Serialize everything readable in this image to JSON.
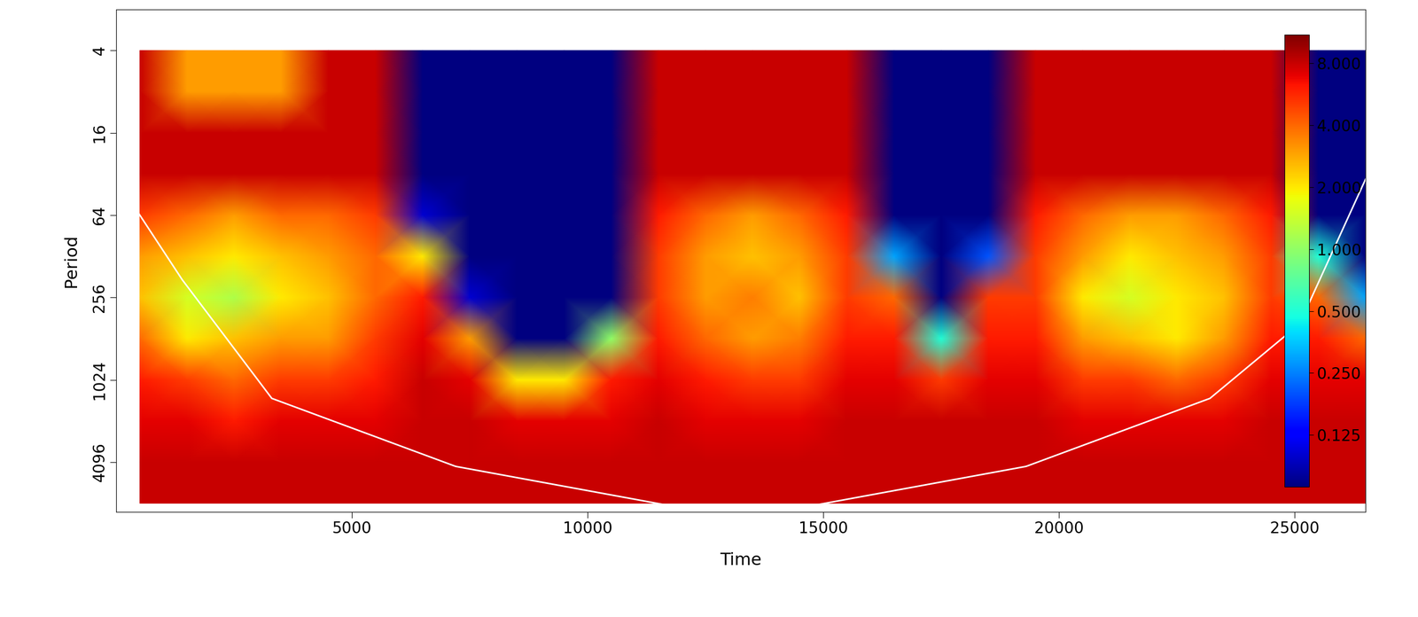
{
  "chart_data": {
    "type": "heatmap",
    "x_label": "Time",
    "y_label": "Period",
    "log": "y",
    "xlim": [
      1,
      26500
    ],
    "xticks": [
      5000,
      10000,
      15000,
      20000,
      25000
    ],
    "ylim": [
      9500,
      2
    ],
    "yticks": [
      4,
      16,
      64,
      256,
      1024,
      4096
    ],
    "x": [
      500,
      1500,
      2500,
      3500,
      4500,
      5500,
      6500,
      7500,
      8500,
      9500,
      10500,
      11500,
      12500,
      13500,
      14500,
      15500,
      16500,
      17500,
      18500,
      19500,
      20500,
      21500,
      22500,
      23500,
      24500,
      25500,
      26500
    ],
    "y": [
      4,
      8,
      16,
      32,
      64,
      128,
      256,
      512,
      1024,
      2048,
      4096,
      8192
    ],
    "cells": [
      [
        8,
        3,
        3,
        3,
        8,
        8,
        0.07,
        0.07,
        0.07,
        0.07,
        0.07,
        8,
        8,
        8,
        8,
        8,
        0.07,
        0.07,
        0.07,
        8,
        8,
        8,
        8,
        8,
        8,
        0.07,
        0.07
      ],
      [
        8,
        3,
        3,
        3,
        8,
        8,
        0.07,
        0.07,
        0.07,
        0.07,
        0.07,
        8,
        8,
        8,
        8,
        8,
        0.07,
        0.07,
        0.07,
        8,
        8,
        8,
        8,
        8,
        8,
        0.07,
        0.07
      ],
      [
        8,
        8,
        8,
        8,
        8,
        8,
        0.07,
        0.07,
        0.07,
        0.07,
        0.07,
        8,
        8,
        8,
        8,
        8,
        0.07,
        0.07,
        0.07,
        8,
        8,
        8,
        8,
        8,
        8,
        0.07,
        0.07
      ],
      [
        8,
        8,
        8,
        8,
        8,
        8,
        0.07,
        0.07,
        0.07,
        0.07,
        0.07,
        8,
        8,
        8,
        8,
        8,
        0.07,
        0.07,
        0.07,
        8,
        8,
        8,
        8,
        8,
        8,
        0.07,
        0.07
      ],
      [
        5,
        4,
        3,
        4,
        4,
        5,
        0.1,
        0.07,
        0.07,
        0.07,
        0.07,
        6,
        4,
        3,
        4,
        6,
        0.07,
        0.07,
        0.07,
        6,
        4,
        3,
        3,
        4,
        6,
        0.07,
        0.07
      ],
      [
        3,
        2.5,
        2,
        2.5,
        3,
        4,
        2,
        0.07,
        0.07,
        0.07,
        0.07,
        5,
        3,
        2.5,
        3,
        5,
        0.3,
        0.07,
        0.2,
        5,
        3,
        2,
        2.5,
        3,
        5,
        0.5,
        0.07
      ],
      [
        2.5,
        1.5,
        1.2,
        2,
        2.5,
        4,
        6,
        0.1,
        0.07,
        0.07,
        0.07,
        5,
        3,
        3.5,
        2.5,
        5,
        4,
        0.07,
        5,
        5,
        2,
        1.5,
        2,
        2.5,
        5,
        4,
        0.3
      ],
      [
        4,
        2,
        2.5,
        3,
        3,
        5,
        7,
        3,
        0.07,
        0.07,
        1,
        6,
        4,
        3,
        3.5,
        6,
        6,
        0.5,
        6,
        6,
        3,
        2.5,
        2,
        3,
        6,
        6,
        4
      ],
      [
        6,
        5,
        4,
        5,
        5,
        6,
        8,
        7,
        2,
        2,
        6,
        7,
        6,
        5,
        5,
        7,
        7,
        5,
        7,
        7,
        5,
        5,
        4,
        5,
        7,
        7,
        7
      ],
      [
        7,
        7,
        6,
        7,
        7,
        7,
        8,
        8,
        7,
        7,
        7,
        8,
        7,
        7,
        7,
        8,
        8,
        8,
        8,
        8,
        7,
        7,
        7,
        7,
        8,
        8,
        8
      ],
      [
        8,
        8,
        8,
        8,
        8,
        8,
        8,
        8,
        8,
        8,
        8,
        8,
        8,
        8,
        8,
        8,
        8,
        8,
        8,
        8,
        8,
        8,
        8,
        8,
        8,
        8,
        8
      ],
      [
        8,
        8,
        8,
        8,
        8,
        8,
        8,
        8,
        8,
        8,
        8,
        8,
        8,
        8,
        8,
        8,
        8,
        8,
        8,
        8,
        8,
        8,
        8,
        8,
        8,
        8,
        8
      ]
    ],
    "color_range": [
      0.07,
      11
    ],
    "color_ticks": [
      {
        "value": 0.125,
        "label": "0.125"
      },
      {
        "value": 0.25,
        "label": "0.250"
      },
      {
        "value": 0.5,
        "label": "0.500"
      },
      {
        "value": 1,
        "label": "1.000"
      },
      {
        "value": 2,
        "label": "2.000"
      },
      {
        "value": 4,
        "label": "4.000"
      },
      {
        "value": 8,
        "label": "8.000"
      }
    ],
    "cone_of_influence": {
      "color": "white",
      "x": [
        1,
        1400,
        3300,
        7200,
        11800,
        13250,
        14700,
        19300,
        23200,
        25100,
        26500
      ],
      "values": [
        35,
        190,
        1400,
        4400,
        8600,
        9500,
        8600,
        4400,
        1400,
        400,
        35
      ]
    }
  }
}
